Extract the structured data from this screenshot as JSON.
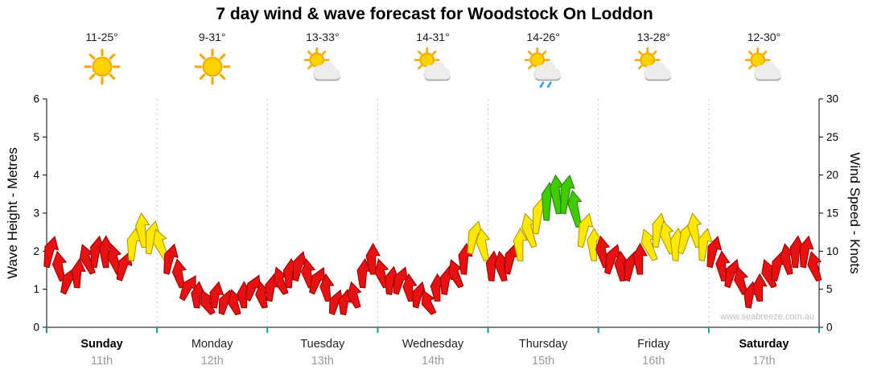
{
  "title": "7 day wind & wave forecast for Woodstock On Loddon",
  "watermark": "www.seabreeze.com.au",
  "axes": {
    "left_label": "Wave Height - Metres",
    "right_label": "Wind Speed - Knots",
    "left_ticks": [
      "6",
      "5",
      "4",
      "3",
      "2",
      "1",
      "0"
    ],
    "right_ticks": [
      "30",
      "25",
      "20",
      "15",
      "10",
      "5",
      "0"
    ]
  },
  "days": [
    {
      "name": "Sunday",
      "date": "11th",
      "temp": "11-25°",
      "icon": "sunny",
      "bold": true
    },
    {
      "name": "Monday",
      "date": "12th",
      "temp": "9-31°",
      "icon": "sunny",
      "bold": false
    },
    {
      "name": "Tuesday",
      "date": "13th",
      "temp": "13-33°",
      "icon": "partly-cloudy",
      "bold": false
    },
    {
      "name": "Wednesday",
      "date": "14th",
      "temp": "14-31°",
      "icon": "partly-cloudy",
      "bold": false
    },
    {
      "name": "Thursday",
      "date": "15th",
      "temp": "14-26°",
      "icon": "showers",
      "bold": false
    },
    {
      "name": "Friday",
      "date": "16th",
      "temp": "13-28°",
      "icon": "partly-cloudy",
      "bold": false
    },
    {
      "name": "Saturday",
      "date": "17th",
      "temp": "12-30°",
      "icon": "partly-cloudy",
      "bold": true
    }
  ],
  "colors": {
    "arrow_red": {
      "fill": "#e81010",
      "stroke": "#8f0000"
    },
    "arrow_yellow": {
      "fill": "#ffe800",
      "stroke": "#a79000"
    },
    "arrow_green": {
      "fill": "#3ecc00",
      "stroke": "#1f7a00"
    },
    "gridline": "#b9c6d6",
    "day_tick": "#0aa0a0",
    "axis": "#000000",
    "sun": "#ffd200",
    "sun_ray": "#f5a800",
    "cloud": "#ececec",
    "cloud_shadow": "#b0b0b0",
    "rain": "#2e9df0"
  },
  "chart_data": {
    "type": "scatter",
    "subtype": "wind-speed-direction-arrows",
    "title": "7 day wind & wave forecast for Woodstock On Loddon",
    "ylabel_left": "Wave Height - Metres",
    "ylabel_right": "Wind Speed - Knots",
    "ylim_left": [
      0,
      6
    ],
    "ylim_right": [
      0,
      30
    ],
    "x_categories": [
      "Sunday 11th",
      "Monday 12th",
      "Tuesday 13th",
      "Wednesday 14th",
      "Thursday 15th",
      "Friday 16th",
      "Saturday 17th"
    ],
    "points_per_day": 12,
    "grid": "vertical dotted lines at day boundaries",
    "legend": "none",
    "color_rule": {
      "red_below_knots": 13,
      "yellow_below_knots": 18,
      "green_at_or_above_knots": 18
    },
    "series": [
      {
        "name": "Wind Speed (knots)",
        "values": [
          12,
          10,
          8,
          9,
          11,
          12,
          12,
          11,
          10,
          13,
          15,
          14,
          13,
          11,
          9,
          7,
          6,
          5,
          6,
          5,
          5,
          6,
          7,
          6,
          7,
          8,
          9,
          10,
          9,
          8,
          7,
          5,
          5,
          6,
          9,
          11,
          9,
          8,
          8,
          7,
          6,
          5,
          7,
          8,
          9,
          11,
          14,
          13,
          10,
          10,
          11,
          13,
          15,
          17,
          19,
          20,
          20,
          18,
          15,
          13,
          12,
          11,
          10,
          10,
          11,
          13,
          15,
          14,
          13,
          14,
          15,
          13,
          12,
          10,
          9,
          8,
          6,
          7,
          9,
          10,
          11,
          12,
          12,
          10
        ],
        "directions_deg": [
          15,
          -10,
          25,
          5,
          -20,
          10,
          0,
          -15,
          20,
          8,
          -5,
          12,
          -20,
          15,
          -10,
          30,
          5,
          -25,
          10,
          20,
          -15,
          0,
          25,
          -10,
          10,
          -20,
          5,
          15,
          -10,
          25,
          -5,
          20,
          10,
          -15,
          5,
          0,
          -15,
          10,
          20,
          -5,
          15,
          -25,
          0,
          10,
          -20,
          5,
          15,
          -10,
          5,
          -10,
          15,
          0,
          -15,
          10,
          5,
          -5,
          10,
          -10,
          15,
          0,
          -10,
          20,
          -5,
          15,
          0,
          -20,
          10,
          -15,
          5,
          20,
          -10,
          10,
          15,
          -5,
          20,
          -15,
          10,
          0,
          -20,
          15,
          -10,
          5,
          10,
          -15
        ]
      }
    ]
  }
}
